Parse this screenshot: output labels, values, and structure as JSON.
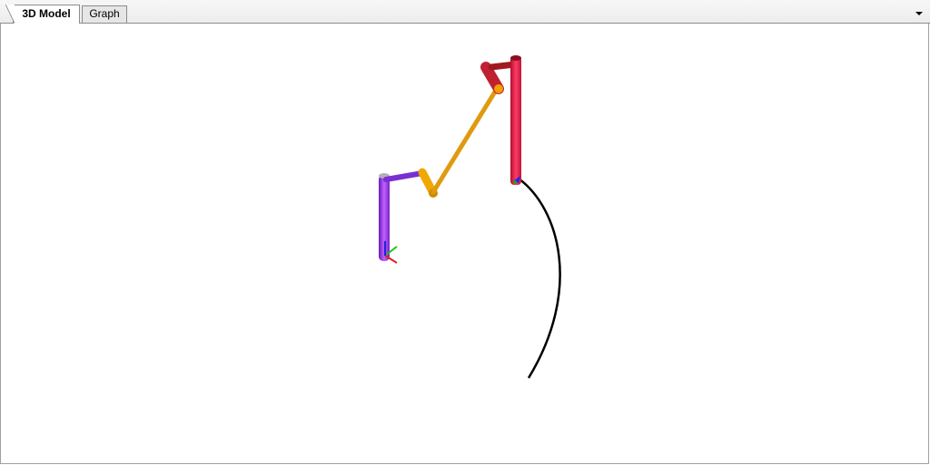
{
  "tabs": [
    {
      "label": "3D Model",
      "active": true
    },
    {
      "label": "Graph",
      "active": false
    }
  ],
  "icons": {
    "tab_menu": "chevron-down-icon",
    "axes": "axes-triad-icon"
  },
  "colors": {
    "link_purple": "#9b30ff",
    "link_orange": "#f0a000",
    "link_red": "#e8204a",
    "link_dark_red": "#b01e28",
    "trajectory": "#000000"
  }
}
